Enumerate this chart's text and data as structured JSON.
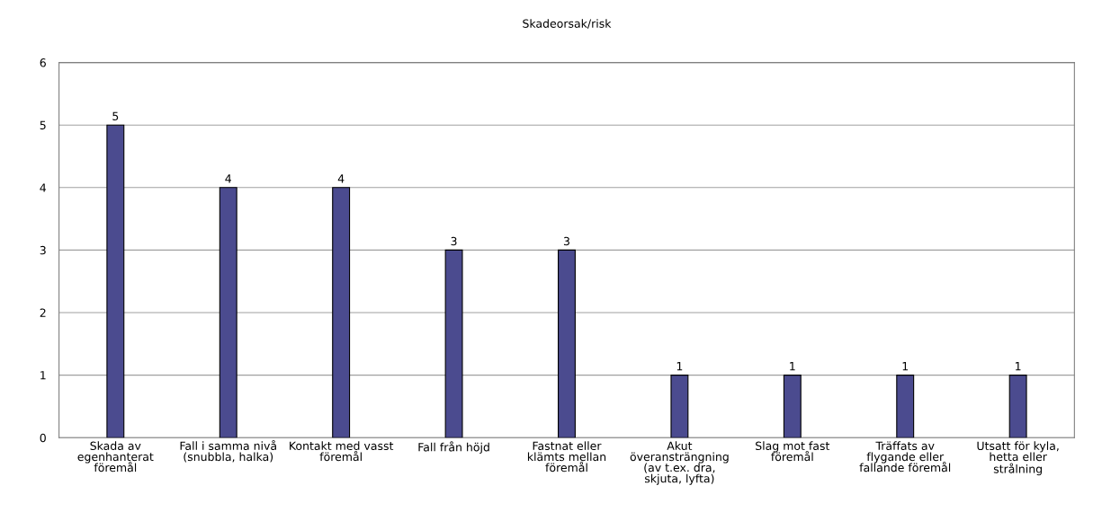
{
  "chart_data": {
    "type": "bar",
    "title": "Skadeorsak/risk",
    "categories": [
      "Skada av\negenhanterat\nföremål",
      "Fall i samma nivå\n(snubbla, halka)",
      "Kontakt med vasst\nföremål",
      "Fall från höjd",
      "Fastnat eller\nklämts mellan\nföremål",
      "Akut\növeransträngning\n(av t.ex. dra,\nskjuta, lyfta)",
      "Slag mot fast\nföremål",
      "Träffats av\nflygande eller\nfallande föremål",
      "Utsatt för kyla,\nhetta eller\nstrålning"
    ],
    "values": [
      5,
      4,
      4,
      3,
      3,
      1,
      1,
      1,
      1
    ],
    "color": "#4b4b8f",
    "ylim": [
      0,
      6
    ],
    "yticks": [
      0,
      1,
      2,
      3,
      4,
      5,
      6
    ],
    "grid": "y",
    "data_labels": true
  }
}
